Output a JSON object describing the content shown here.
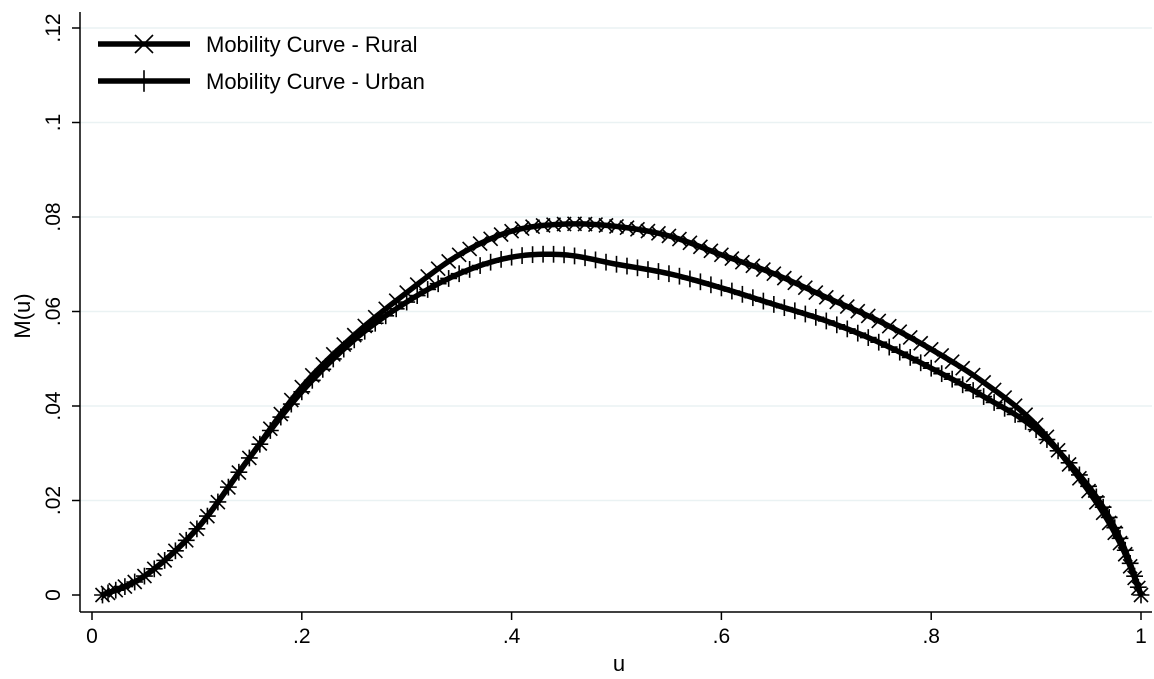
{
  "chart_data": {
    "type": "line",
    "xlabel": "u",
    "ylabel": "M(u)",
    "xlim": [
      0,
      1
    ],
    "ylim": [
      0,
      0.12
    ],
    "x_ticks": [
      {
        "value": 0,
        "label": "0"
      },
      {
        "value": 0.2,
        "label": ".2"
      },
      {
        "value": 0.4,
        "label": ".4"
      },
      {
        "value": 0.6,
        "label": ".6"
      },
      {
        "value": 0.8,
        "label": ".8"
      },
      {
        "value": 1,
        "label": "1"
      }
    ],
    "y_ticks": [
      {
        "value": 0,
        "label": "0"
      },
      {
        "value": 0.02,
        "label": ".02"
      },
      {
        "value": 0.04,
        "label": ".04"
      },
      {
        "value": 0.06,
        "label": ".06"
      },
      {
        "value": 0.08,
        "label": ".08"
      },
      {
        "value": 0.1,
        "label": ".1"
      },
      {
        "value": 0.12,
        "label": ".12"
      }
    ],
    "grid": "horizontal",
    "legend_position": "top-left",
    "series": [
      {
        "name": "Mobility Curve - Rural",
        "marker": "x",
        "color": "#000000",
        "x": [
          0.01,
          0.05,
          0.1,
          0.15,
          0.2,
          0.25,
          0.3,
          0.35,
          0.4,
          0.45,
          0.5,
          0.55,
          0.6,
          0.65,
          0.7,
          0.75,
          0.8,
          0.85,
          0.9,
          0.95,
          0.98,
          1.0
        ],
        "y": [
          0.0,
          0.004,
          0.014,
          0.029,
          0.044,
          0.055,
          0.064,
          0.072,
          0.077,
          0.0785,
          0.078,
          0.076,
          0.072,
          0.068,
          0.063,
          0.058,
          0.052,
          0.045,
          0.036,
          0.022,
          0.011,
          0.0
        ]
      },
      {
        "name": "Mobility Curve - Urban",
        "marker": "+",
        "color": "#000000",
        "x": [
          0.01,
          0.05,
          0.1,
          0.15,
          0.2,
          0.25,
          0.3,
          0.35,
          0.4,
          0.45,
          0.5,
          0.55,
          0.6,
          0.65,
          0.7,
          0.75,
          0.8,
          0.85,
          0.9,
          0.95,
          0.98,
          1.0
        ],
        "y": [
          0.0,
          0.004,
          0.014,
          0.029,
          0.043,
          0.054,
          0.062,
          0.068,
          0.0715,
          0.072,
          0.07,
          0.068,
          0.065,
          0.0615,
          0.058,
          0.0535,
          0.048,
          0.042,
          0.035,
          0.023,
          0.012,
          0.0
        ]
      }
    ]
  }
}
